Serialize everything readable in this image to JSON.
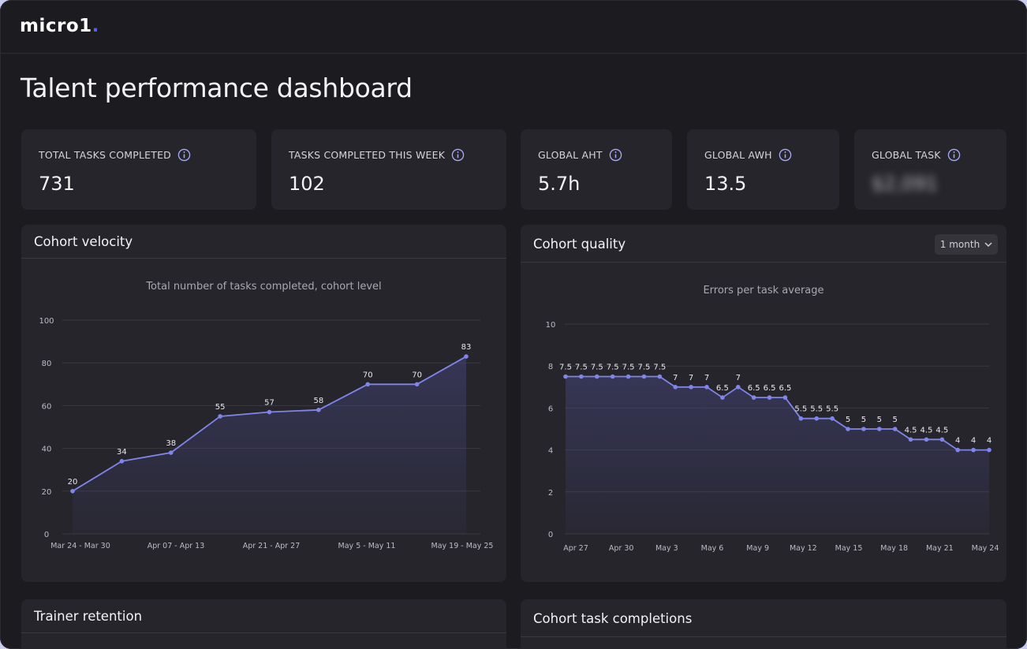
{
  "app": {
    "logo_text": "micro1",
    "logo_dot": "."
  },
  "page": {
    "title": "Talent performance dashboard"
  },
  "stats": [
    {
      "label": "TOTAL TASKS COMPLETED",
      "value": "731"
    },
    {
      "label": "TASKS COMPLETED THIS WEEK",
      "value": "102"
    },
    {
      "label": "GLOBAL AHT",
      "value": "5.7h"
    },
    {
      "label": "GLOBAL AWH",
      "value": "13.5"
    },
    {
      "label": "GLOBAL TASK",
      "value": "$2,091"
    }
  ],
  "colors": {
    "accent": "#7f86e8",
    "background": "#1c1b20",
    "card": "#26252b"
  },
  "velocity": {
    "title": "Cohort velocity"
  },
  "quality": {
    "title": "Cohort quality",
    "range_select": "1 month"
  },
  "retention": {
    "title": "Trainer retention"
  },
  "completions": {
    "title": "Cohort task completions"
  },
  "chart_data": [
    {
      "type": "line",
      "title": "Total number of tasks completed, cohort level",
      "x": [
        "Mar 24 - Mar 30",
        "",
        "Apr 07 - Apr 13",
        "",
        "Apr 21 - Apr 27",
        "",
        "May 5 - May 11",
        "",
        "May 19 - May 25"
      ],
      "x_tick_labels": [
        "Mar 24 - Mar 30",
        "Apr 07 - Apr 13",
        "Apr 21 - Apr 27",
        "May 5 - May 11",
        "May 19 - May 25"
      ],
      "values": [
        20,
        34,
        38,
        55,
        57,
        58,
        70,
        70,
        83
      ],
      "ylim": [
        0,
        100
      ],
      "y_ticks": [
        0,
        20,
        40,
        60,
        80,
        100
      ],
      "grid": true,
      "area_fill": true
    },
    {
      "type": "line",
      "title": "Errors per task average",
      "x_tick_labels": [
        "Apr 27",
        "Apr 30",
        "May 3",
        "May 6",
        "May 9",
        "May 12",
        "May 15",
        "May 18",
        "May 21",
        "May 24"
      ],
      "values": [
        7.5,
        7.5,
        7.5,
        7.5,
        7.5,
        7.5,
        7.5,
        7,
        7,
        7,
        6.5,
        7,
        6.5,
        6.5,
        6.5,
        5.5,
        5.5,
        5.5,
        5,
        5,
        5,
        5,
        4.5,
        4.5,
        4.5,
        4,
        4,
        4
      ],
      "label_indices": [
        0,
        1,
        2,
        3,
        4,
        5,
        6,
        7,
        8,
        9,
        10,
        11,
        12,
        13,
        14,
        15,
        16,
        17,
        18,
        19,
        20,
        21,
        22,
        23,
        24,
        25,
        26,
        27
      ],
      "ylim": [
        0,
        10
      ],
      "y_ticks": [
        0,
        2,
        4,
        6,
        8,
        10
      ],
      "grid": true,
      "area_fill": true
    }
  ]
}
